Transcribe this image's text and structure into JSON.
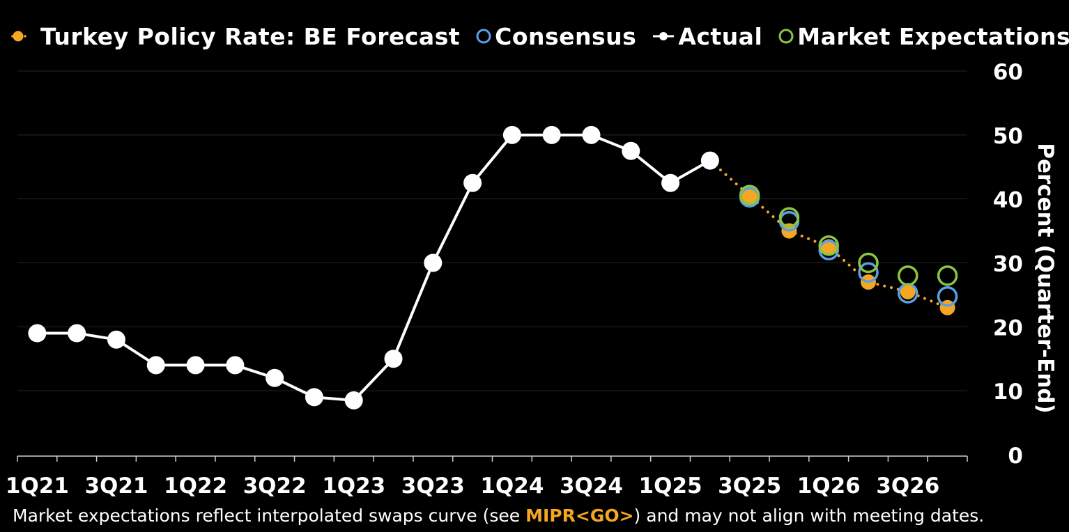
{
  "legend": {
    "forecast": "Turkey Policy Rate: BE Forecast",
    "consensus": "Consensus",
    "actual": "Actual",
    "market": "Market Expectations"
  },
  "footnote": {
    "before": "Market expectations reflect interpolated swaps curve (see ",
    "highlight": "MIPR<GO>",
    "after": ") and may not align with meeting dates."
  },
  "colors": {
    "forecast": "#f5a623",
    "consensus": "#5aa0e6",
    "actual": "#ffffff",
    "market": "#8cc63f",
    "background": "#000000",
    "grid": "#262626"
  },
  "chart_data": {
    "type": "line",
    "ylabel": "Percent (Quarter-End)",
    "ylim": [
      0,
      60
    ],
    "yticks": [
      0,
      10,
      20,
      30,
      40,
      50,
      60
    ],
    "y_axis_side": "right",
    "legend_position": "top",
    "grid": true,
    "categories": [
      "1Q21",
      "2Q21",
      "3Q21",
      "4Q21",
      "1Q22",
      "2Q22",
      "3Q22",
      "4Q22",
      "1Q23",
      "2Q23",
      "3Q23",
      "4Q23",
      "1Q24",
      "2Q24",
      "3Q24",
      "4Q24",
      "1Q25",
      "2Q25",
      "3Q25",
      "4Q25",
      "1Q26",
      "2Q26",
      "3Q26",
      "4Q26"
    ],
    "tick_labels": [
      "1Q21",
      "3Q21",
      "1Q22",
      "3Q22",
      "1Q23",
      "3Q23",
      "1Q24",
      "3Q24",
      "1Q25",
      "3Q25",
      "1Q26",
      "3Q26"
    ],
    "series": [
      {
        "name": "Actual",
        "key": "actual",
        "style": "line-markers",
        "values": [
          19,
          19,
          18,
          14,
          14,
          14,
          12,
          9,
          8.5,
          15,
          30,
          42.5,
          50,
          50,
          50,
          47.5,
          42.5,
          46,
          null,
          null,
          null,
          null,
          null,
          null
        ]
      },
      {
        "name": "Turkey Policy Rate: BE Forecast",
        "key": "forecast",
        "style": "dotted-filled",
        "values": [
          null,
          null,
          null,
          null,
          null,
          null,
          null,
          null,
          null,
          null,
          null,
          null,
          null,
          null,
          null,
          null,
          null,
          46,
          40.5,
          35,
          32.5,
          27,
          25.5,
          23
        ]
      },
      {
        "name": "Consensus",
        "key": "consensus",
        "style": "hollow",
        "values": [
          null,
          null,
          null,
          null,
          null,
          null,
          null,
          null,
          null,
          null,
          null,
          null,
          null,
          null,
          null,
          null,
          null,
          null,
          40.25,
          36.5,
          32,
          28.5,
          25.25,
          24.75
        ]
      },
      {
        "name": "Market Expectations",
        "key": "market",
        "style": "hollow",
        "values": [
          null,
          null,
          null,
          null,
          null,
          null,
          null,
          null,
          null,
          null,
          null,
          null,
          null,
          null,
          null,
          null,
          null,
          null,
          40.6,
          37.1,
          32.7,
          30,
          28,
          28
        ]
      }
    ]
  }
}
